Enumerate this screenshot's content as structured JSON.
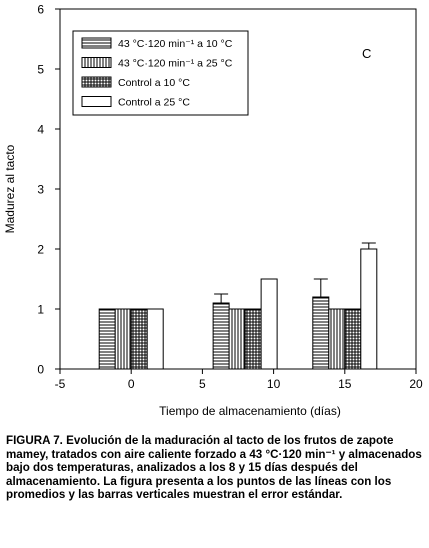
{
  "chart_data": {
    "type": "bar",
    "panel_label": "C",
    "xlabel": "Tiempo de almacenamiento (días)",
    "ylabel": "Madurez al tacto",
    "xlim": [
      -5,
      20
    ],
    "ylim": [
      0,
      6
    ],
    "x_ticks": [
      "-5",
      "0",
      "5",
      "10",
      "15",
      "20"
    ],
    "y_ticks": [
      "0",
      "1",
      "2",
      "3",
      "4",
      "5",
      "6"
    ],
    "grid": false,
    "legend_position": "top-left",
    "series": [
      {
        "name": "43 °C·120 min⁻¹ a 10 °C",
        "pattern": "horizontal",
        "points": [
          {
            "x": 0,
            "y": 1.0,
            "err": 0
          },
          {
            "x": 8,
            "y": 1.1,
            "err": 0.15
          },
          {
            "x": 15,
            "y": 1.2,
            "err": 0.3
          }
        ]
      },
      {
        "name": "43 °C·120 min⁻¹ a 25 °C",
        "pattern": "vertical",
        "points": [
          {
            "x": 0,
            "y": 1.0,
            "err": 0
          },
          {
            "x": 8,
            "y": 1.0,
            "err": 0
          },
          {
            "x": 15,
            "y": 1.0,
            "err": 0
          }
        ]
      },
      {
        "name": "Control a 10 °C",
        "pattern": "grid",
        "points": [
          {
            "x": 0,
            "y": 1.0,
            "err": 0
          },
          {
            "x": 8,
            "y": 1.0,
            "err": 0
          },
          {
            "x": 15,
            "y": 1.0,
            "err": 0
          }
        ]
      },
      {
        "name": "Control a 25 °C",
        "pattern": "open",
        "points": [
          {
            "x": 0,
            "y": 1.0,
            "err": 0
          },
          {
            "x": 8,
            "y": 1.5,
            "err": 0
          },
          {
            "x": 15,
            "y": 2.0,
            "err": 0.1
          }
        ]
      }
    ]
  },
  "caption": {
    "label": "FIGURA 7.",
    "text": "Evolución de la maduración al tacto de los frutos de zapote mamey, tratados con aire caliente forzado a 43 °C·120 min⁻¹ y almacenados bajo dos temperaturas, analizados a los 8 y 15 días después del almacenamiento. La figura presenta a los puntos de las líneas con los promedios y las barras verticales muestran el error estándar."
  }
}
